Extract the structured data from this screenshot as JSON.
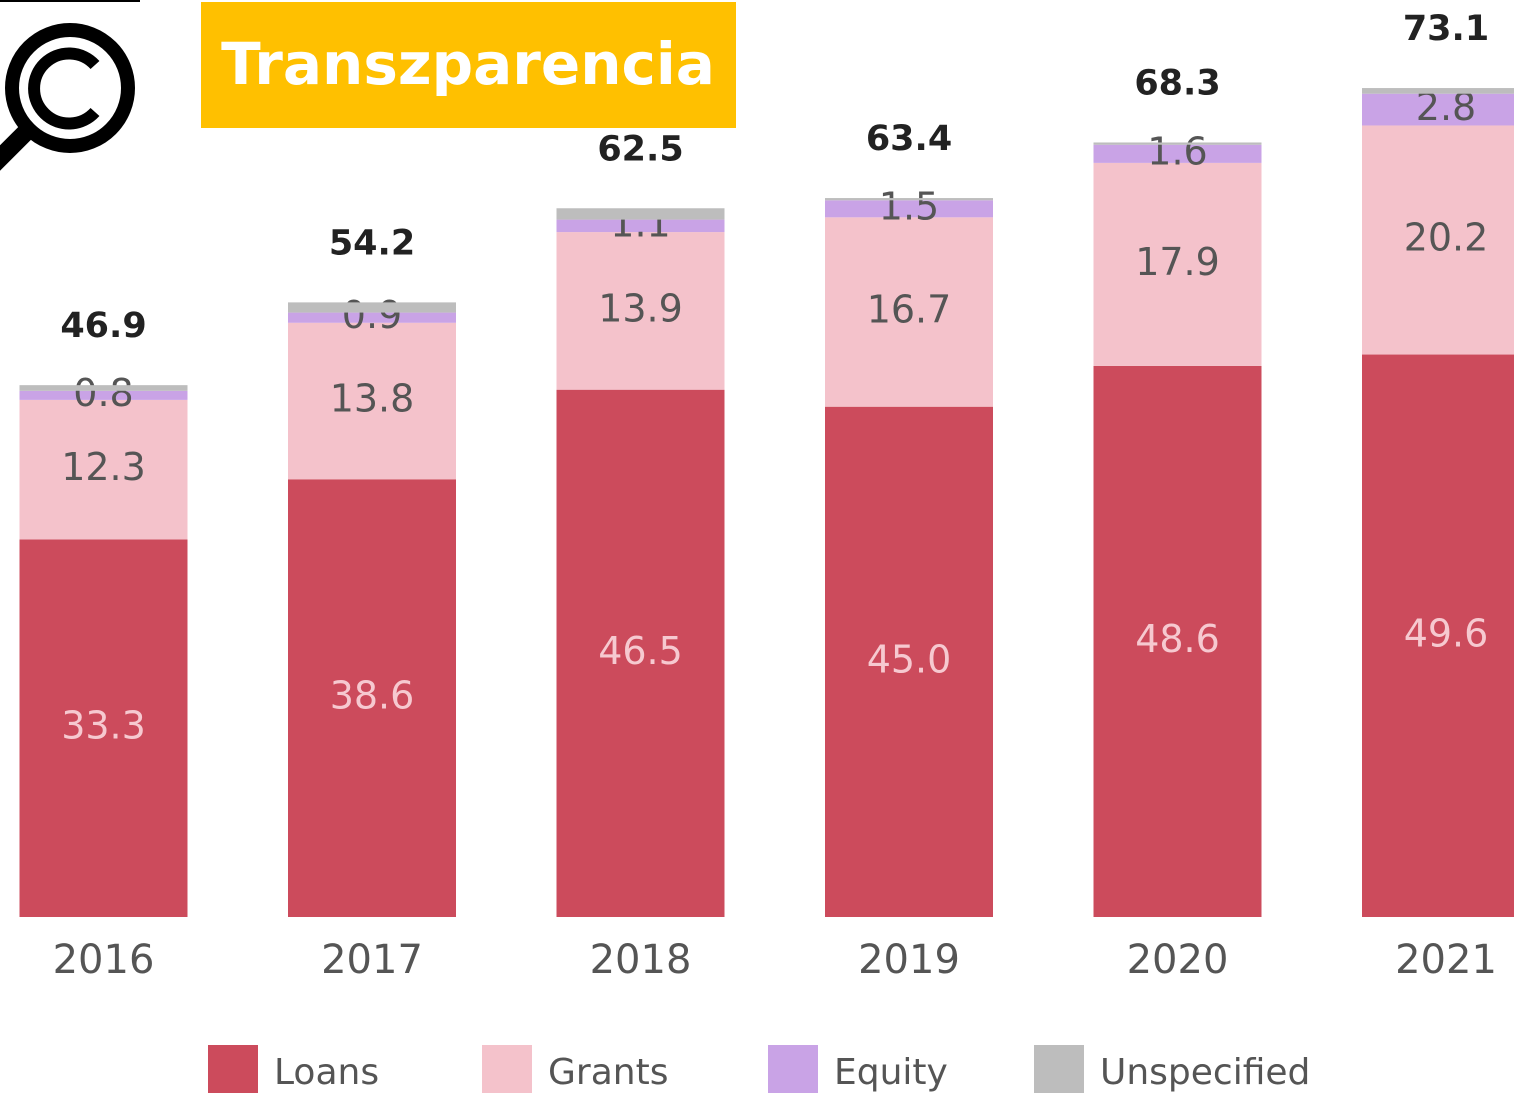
{
  "logo": "Transzparencia",
  "chart_data": {
    "type": "stacked_bar",
    "categories": [
      "2016",
      "2017",
      "2018",
      "2019",
      "2020",
      "2021"
    ],
    "series": [
      {
        "name": "Loans",
        "color": "#cc4b5c",
        "values": [
          33.3,
          38.6,
          46.5,
          45.0,
          48.6,
          49.6
        ],
        "value_labels": [
          "33.3",
          "38.6",
          "46.5",
          "45.0",
          "48.6",
          "49.6"
        ]
      },
      {
        "name": "Grants",
        "color": "#f4c2cb",
        "values": [
          12.3,
          13.8,
          13.9,
          16.7,
          17.9,
          20.2
        ]
      },
      {
        "name": "Equity",
        "color": "#c9a3e6",
        "values": [
          0.8,
          0.9,
          1.1,
          1.5,
          1.6,
          2.8
        ]
      },
      {
        "name": "Unspecified",
        "color": "#bdbdbd",
        "values": [
          0.5,
          0.9,
          1.0,
          0.2,
          0.2,
          0.5
        ]
      }
    ],
    "totals": [
      46.9,
      54.2,
      62.5,
      63.4,
      68.3,
      73.1
    ],
    "legend": "bottom"
  }
}
